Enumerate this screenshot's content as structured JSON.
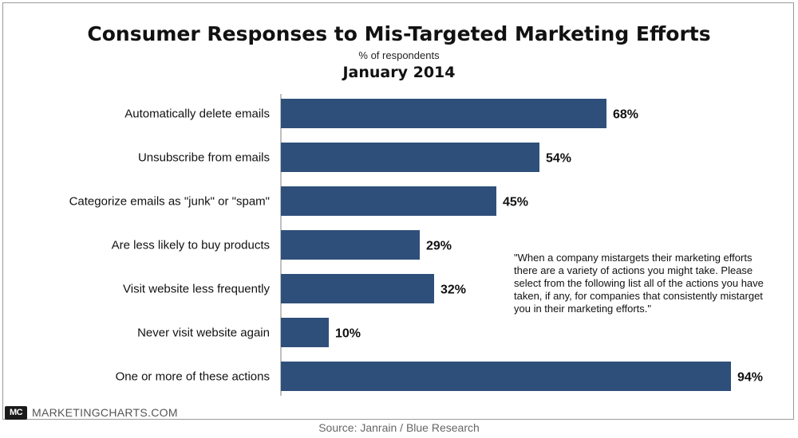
{
  "header": {
    "title": "Consumer Responses to Mis-Targeted Marketing Efforts",
    "subtitle": "% of respondents",
    "date": "January 2014"
  },
  "chart_data": {
    "type": "bar",
    "orientation": "horizontal",
    "categories": [
      "Automatically delete emails",
      "Unsubscribe from emails",
      "Categorize emails as \"junk\" or \"spam\"",
      "Are less likely to buy products",
      "Visit website less frequently",
      "Never visit website again",
      "One or more of these actions"
    ],
    "values": [
      68,
      54,
      45,
      29,
      32,
      10,
      94
    ],
    "value_labels": [
      "68%",
      "54%",
      "45%",
      "29%",
      "32%",
      "10%",
      "94%"
    ],
    "bar_color": "#2e4f7a",
    "grid": false,
    "xlim": [
      0,
      100
    ]
  },
  "note": "\"When a company mistargets their marketing efforts there are a variety of actions you might take. Please select from the following list all of the actions you have taken, if any, for companies that consistently mistarget you in their marketing efforts.\"",
  "footer": {
    "logo_text": "MC",
    "brand": "MARKETINGCHARTS.COM",
    "source": "Source: Janrain / Blue Research"
  }
}
